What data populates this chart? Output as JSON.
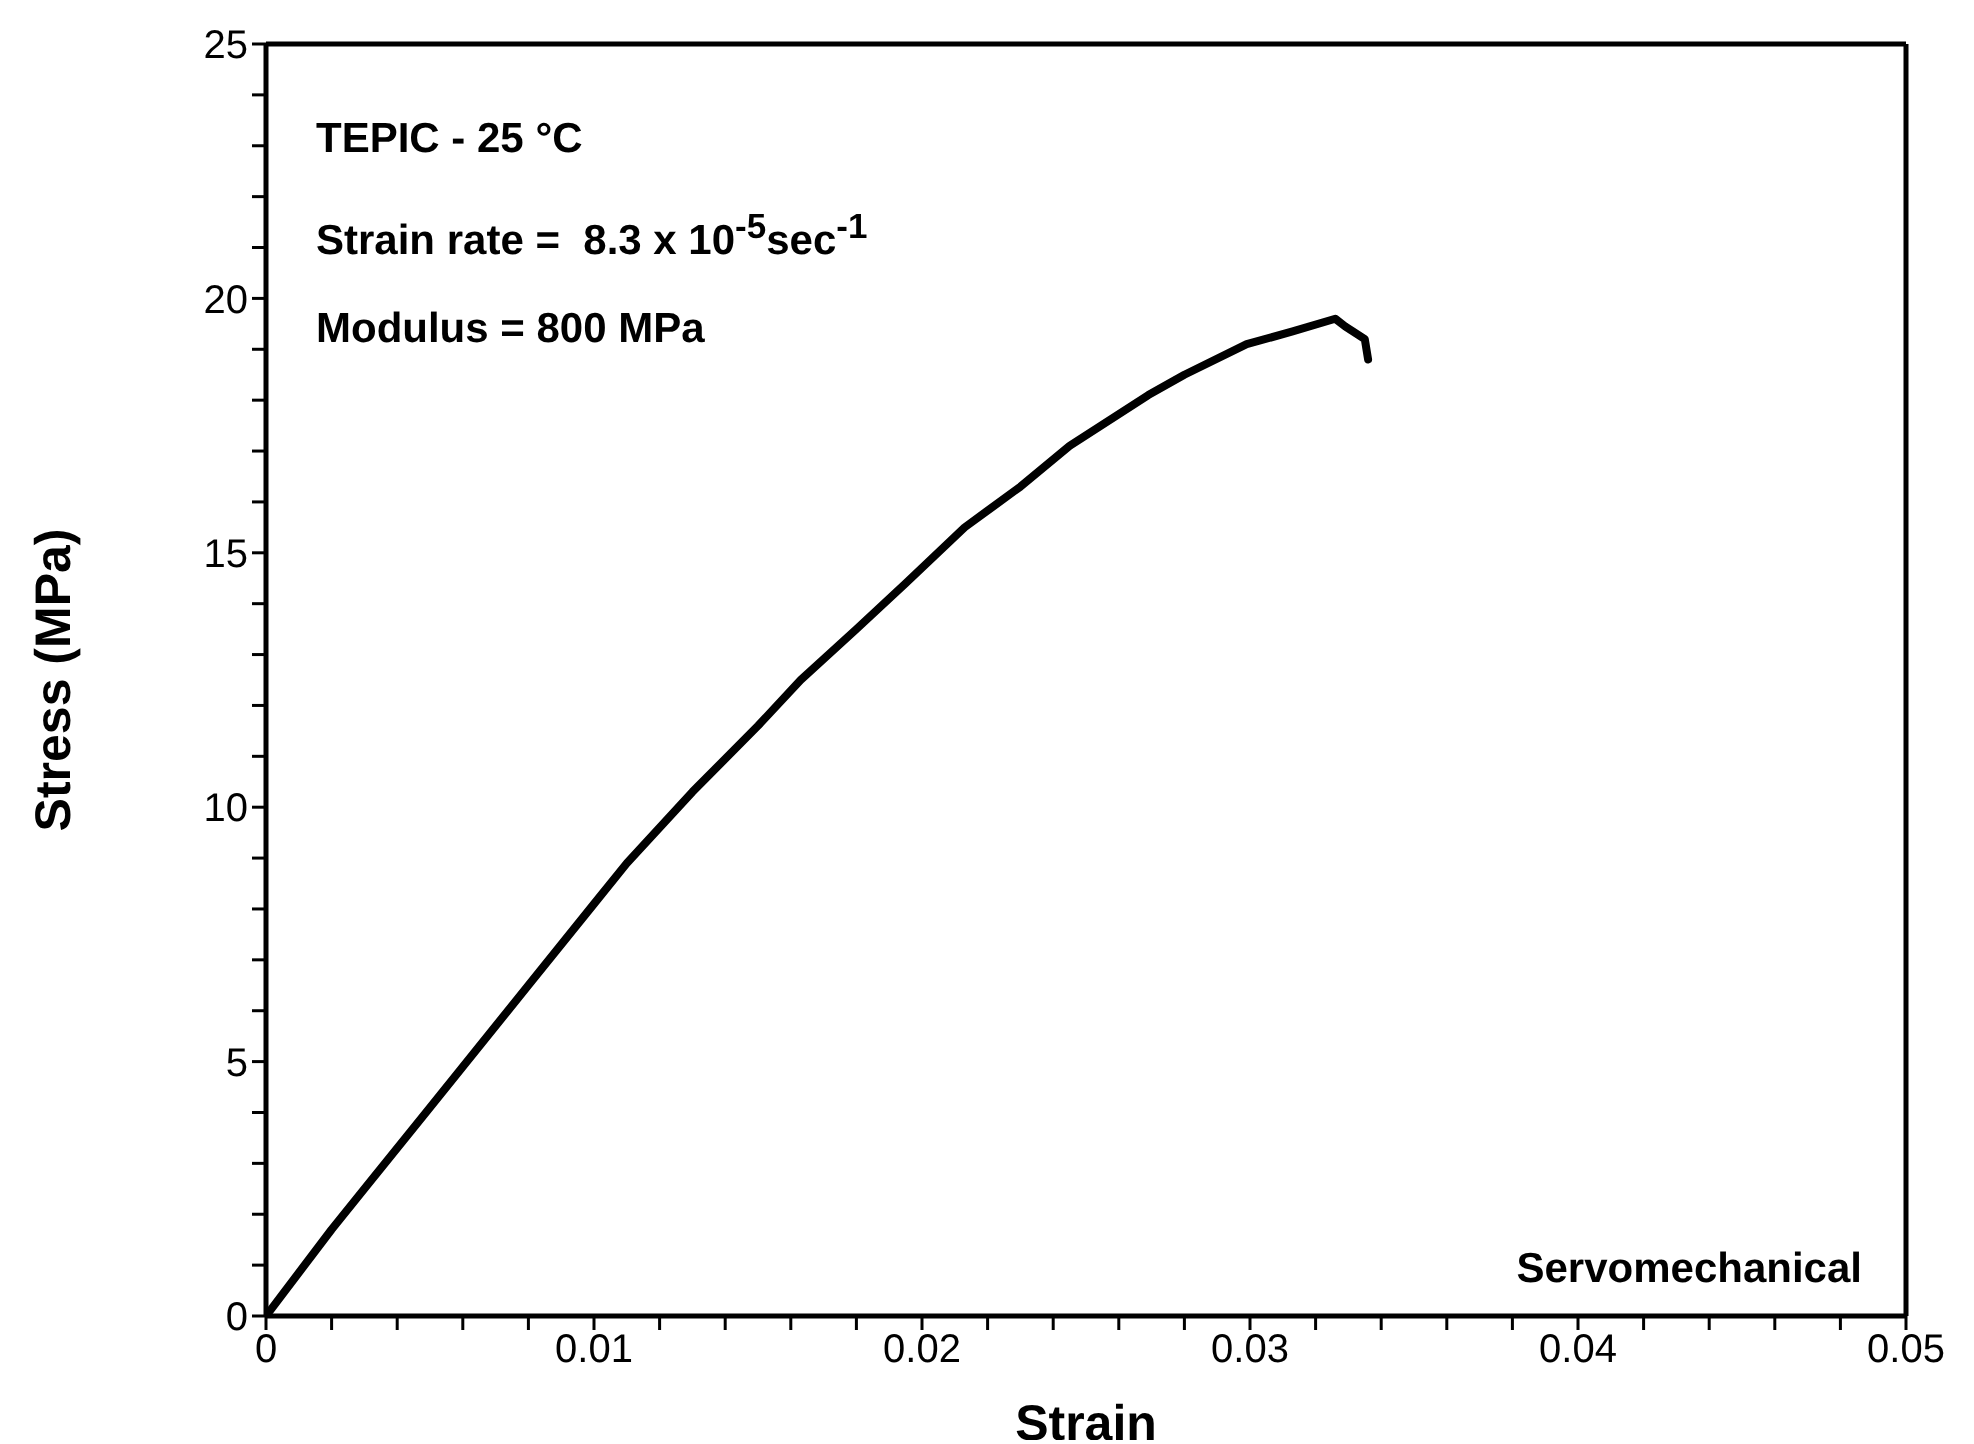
{
  "chart_data": {
    "type": "line",
    "xlabel": "Strain",
    "ylabel": "Stress (MPa)",
    "annotations": [
      "TEPIC - 25 °C",
      "Strain rate =  8.3 x 10$^{-5}$sec$^{-1}$",
      "Modulus = 800 MPa",
      "Servomechanical"
    ],
    "series": [
      {
        "color": "#000000",
        "x": [
          0,
          0.002,
          0.003,
          0.005,
          0.006,
          0.008,
          0.01,
          0.011,
          0.013,
          0.015,
          0.0163,
          0.018,
          0.0195,
          0.0213,
          0.023,
          0.0245,
          0.0269,
          0.028,
          0.0299,
          0.0313,
          0.0326,
          0.0329,
          0.0335,
          0.0336
        ],
        "values": [
          0,
          1.7,
          2.5,
          4.1,
          4.9,
          6.5,
          8.1,
          8.9,
          10.3,
          11.6,
          12.5,
          13.5,
          14.4,
          15.5,
          16.3,
          17.1,
          18.1,
          18.5,
          19.1,
          19.35,
          19.6,
          19.45,
          19.2,
          18.8
        ]
      }
    ],
    "xlim": [
      0,
      0.05
    ],
    "ylim": [
      0,
      25
    ],
    "xticks": [
      0,
      {
        "value": 0.002,
        "label": null
      },
      {
        "value": 0.004,
        "label": null
      },
      {
        "value": 0.006,
        "label": null
      },
      {
        "value": 0.008,
        "label": null
      },
      0.01,
      {
        "value": 0.012,
        "label": null
      },
      {
        "value": 0.014,
        "label": null
      },
      {
        "value": 0.016,
        "label": null
      },
      {
        "value": 0.018,
        "label": null
      },
      0.02,
      {
        "value": 0.022,
        "label": null
      },
      {
        "value": 0.024,
        "label": null
      },
      {
        "value": 0.026,
        "label": null
      },
      {
        "value": 0.028,
        "label": null
      },
      0.03,
      {
        "value": 0.032,
        "label": null
      },
      {
        "value": 0.034,
        "label": null
      },
      {
        "value": 0.036,
        "label": null
      },
      {
        "value": 0.038,
        "label": null
      },
      0.04,
      {
        "value": 0.042,
        "label": null
      },
      {
        "value": 0.044,
        "label": null
      },
      {
        "value": 0.046,
        "label": null
      },
      {
        "value": 0.048,
        "label": null
      },
      0.05
    ],
    "yticks": [
      0,
      {
        "value": 1,
        "label": null
      },
      {
        "value": 2,
        "label": null
      },
      {
        "value": 3,
        "label": null
      },
      {
        "value": 4,
        "label": null
      },
      5,
      {
        "value": 6,
        "label": null
      },
      {
        "value": 7,
        "label": null
      },
      {
        "value": 8,
        "label": null
      },
      {
        "value": 9,
        "label": null
      },
      10,
      {
        "value": 11,
        "label": null
      },
      {
        "value": 12,
        "label": null
      },
      {
        "value": 13,
        "label": null
      },
      {
        "value": 14,
        "label": null
      },
      15,
      {
        "value": 16,
        "label": null
      },
      {
        "value": 17,
        "label": null
      },
      {
        "value": 18,
        "label": null
      },
      {
        "value": 19,
        "label": null
      },
      20,
      {
        "value": 21,
        "label": null
      },
      {
        "value": 22,
        "label": null
      },
      {
        "value": 23,
        "label": null
      },
      {
        "value": 24,
        "label": null
      },
      25
    ],
    "grid": false,
    "legend": false,
    "marker": "none",
    "line_style": "solid"
  }
}
